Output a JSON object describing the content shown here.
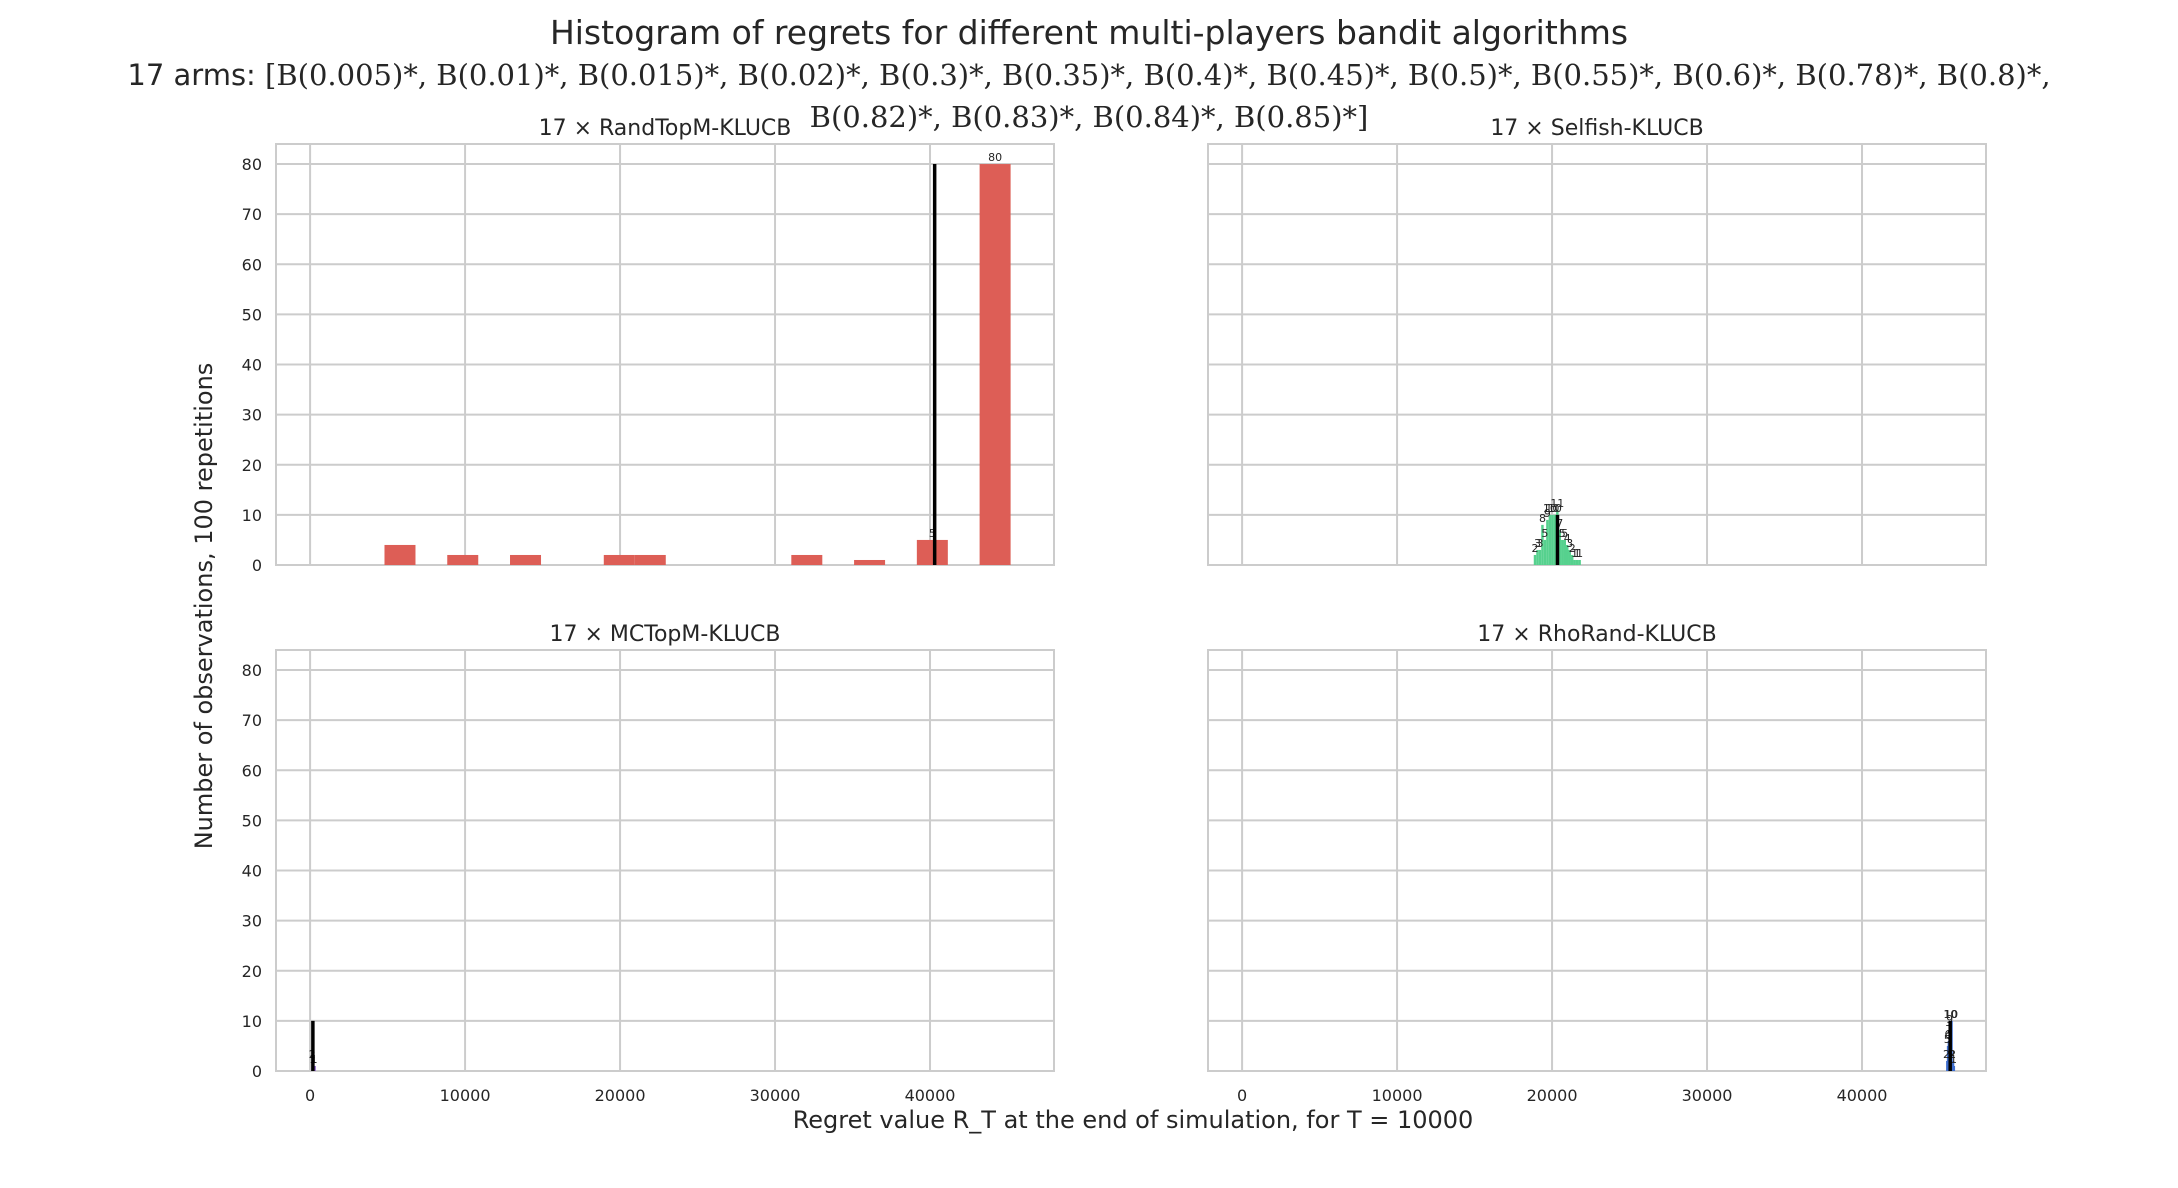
{
  "figure": {
    "title": "Histogram of regrets for different multi-players bandit algorithms",
    "subtitle_prefix": "17 arms:",
    "subtitle_arms": "[B(0.005)*, B(0.01)*, B(0.015)*, B(0.02)*, B(0.3)*, B(0.35)*, B(0.4)*, B(0.45)*, B(0.5)*, B(0.55)*, B(0.6)*, B(0.78)*, B(0.8)*, B(0.82)*, B(0.83)*, B(0.84)*, B(0.85)*]",
    "xlabel": "Regret value R_T at the end of simulation, for T = 10000",
    "ylabel": "Number of observations, 100 repetitions"
  },
  "chart_data": [
    {
      "type": "bar",
      "title": "17 × RandTopM-KLUCB",
      "color": "#dd5e56",
      "xlim": [
        -2200,
        48000
      ],
      "ylim": [
        0,
        84
      ],
      "xticks": [
        0,
        10000,
        20000,
        30000,
        40000
      ],
      "yticks": [
        0,
        10,
        20,
        30,
        40,
        50,
        60,
        70,
        80
      ],
      "grid": true,
      "bin_width": 2000,
      "bins": [
        {
          "x": 5800,
          "value": 4
        },
        {
          "x": 9850,
          "value": 2
        },
        {
          "x": 13900,
          "value": 2
        },
        {
          "x": 19950,
          "value": 2
        },
        {
          "x": 21950,
          "value": 2
        },
        {
          "x": 32050,
          "value": 2
        },
        {
          "x": 36100,
          "value": 1
        },
        {
          "x": 40150,
          "value": 5,
          "label": "5"
        },
        {
          "x": 44200,
          "value": 80,
          "label": "80"
        }
      ],
      "mean_line": {
        "x": 40300,
        "height": 80
      }
    },
    {
      "type": "bar",
      "title": "17 × Selfish-KLUCB",
      "color": "#56d18e",
      "xlim": [
        -2200,
        48000
      ],
      "ylim": [
        0,
        84
      ],
      "xticks": [
        0,
        10000,
        20000,
        30000,
        40000
      ],
      "yticks": [
        0,
        10,
        20,
        30,
        40,
        50,
        60,
        70,
        80
      ],
      "grid": true,
      "bin_width": 160,
      "bins": [
        {
          "x": 18900,
          "value": 2,
          "label": "2"
        },
        {
          "x": 19060,
          "value": 3,
          "label": "3"
        },
        {
          "x": 19220,
          "value": 3,
          "label": "3"
        },
        {
          "x": 19380,
          "value": 8,
          "label": "8"
        },
        {
          "x": 19540,
          "value": 5,
          "label": "5"
        },
        {
          "x": 19700,
          "value": 9,
          "label": "9"
        },
        {
          "x": 19860,
          "value": 10,
          "label": "10"
        },
        {
          "x": 20020,
          "value": 10,
          "label": "10"
        },
        {
          "x": 20180,
          "value": 10,
          "label": "10"
        },
        {
          "x": 20340,
          "value": 11,
          "label": "11"
        },
        {
          "x": 20500,
          "value": 7,
          "label": "7"
        },
        {
          "x": 20660,
          "value": 5,
          "label": "5"
        },
        {
          "x": 20820,
          "value": 5,
          "label": "5"
        },
        {
          "x": 20980,
          "value": 4,
          "label": "4"
        },
        {
          "x": 21140,
          "value": 3,
          "label": "3"
        },
        {
          "x": 21300,
          "value": 2,
          "label": "2"
        },
        {
          "x": 21460,
          "value": 1,
          "label": "1"
        },
        {
          "x": 21620,
          "value": 1,
          "label": "1"
        },
        {
          "x": 21780,
          "value": 1,
          "label": "1"
        }
      ],
      "mean_line": {
        "x": 20350,
        "height": 10
      }
    },
    {
      "type": "bar",
      "title": "17 × MCTopM-KLUCB",
      "color": "#8e63c8",
      "xlim": [
        -2200,
        48000
      ],
      "ylim": [
        0,
        84
      ],
      "xticks": [
        0,
        10000,
        20000,
        30000,
        40000
      ],
      "yticks": [
        0,
        10,
        20,
        30,
        40,
        50,
        60,
        70,
        80
      ],
      "grid": true,
      "bin_width": 40,
      "bins": [
        {
          "x": 140,
          "value": 2,
          "label": "2"
        },
        {
          "x": 180,
          "value": 1,
          "label": "1"
        },
        {
          "x": 220,
          "value": 1,
          "label": "1"
        },
        {
          "x": 260,
          "value": 1,
          "label": "1"
        }
      ],
      "mean_line": {
        "x": 180,
        "height": 10
      }
    },
    {
      "type": "bar",
      "title": "17 × RhoRand-KLUCB",
      "color": "#3f6fcf",
      "xlim": [
        -2200,
        48000
      ],
      "ylim": [
        0,
        84
      ],
      "xticks": [
        0,
        10000,
        20000,
        30000,
        40000
      ],
      "yticks": [
        0,
        10,
        20,
        30,
        40,
        50,
        60,
        70,
        80
      ],
      "grid": true,
      "bin_width": 50,
      "bins": [
        {
          "x": 45450,
          "value": 2,
          "label": "2"
        },
        {
          "x": 45500,
          "value": 5,
          "label": "5"
        },
        {
          "x": 45550,
          "value": 6,
          "label": "6"
        },
        {
          "x": 45600,
          "value": 7,
          "label": "7"
        },
        {
          "x": 45650,
          "value": 9,
          "label": "9"
        },
        {
          "x": 45700,
          "value": 10,
          "label": "10"
        },
        {
          "x": 45750,
          "value": 10,
          "label": "10"
        },
        {
          "x": 45800,
          "value": 2,
          "label": "2"
        },
        {
          "x": 45850,
          "value": 2,
          "label": "2"
        },
        {
          "x": 45900,
          "value": 1,
          "label": "1"
        }
      ],
      "mean_line": {
        "x": 45690,
        "height": 10
      }
    }
  ]
}
